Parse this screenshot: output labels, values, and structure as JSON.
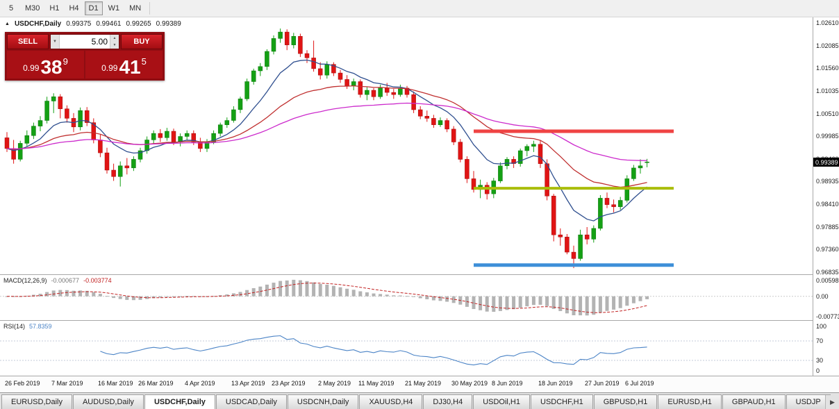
{
  "toolbar": {
    "timeframes": [
      {
        "label": "5",
        "active": false
      },
      {
        "label": "M30",
        "active": false
      },
      {
        "label": "H1",
        "active": false
      },
      {
        "label": "H4",
        "active": false
      },
      {
        "label": "D1",
        "active": true
      },
      {
        "label": "W1",
        "active": false
      },
      {
        "label": "MN",
        "active": false
      }
    ]
  },
  "chart_header": {
    "direction_icon": "▲",
    "symbol": "USDCHF,Daily",
    "open": "0.99375",
    "high": "0.99461",
    "low": "0.99265",
    "close": "0.99389"
  },
  "trade_panel": {
    "sell_label": "SELL",
    "buy_label": "BUY",
    "lot_value": "5.00",
    "lot_dropdown_icon": "▼",
    "lot_spin_up_icon": "▲",
    "lot_spin_down_icon": "▼",
    "bid_prefix": "0.99",
    "bid_big": "38",
    "bid_sup": "9",
    "ask_prefix": "0.99",
    "ask_big": "41",
    "ask_sup": "5"
  },
  "price_axis": {
    "labels": [
      "1.02610",
      "1.02085",
      "1.01560",
      "1.01035",
      "1.00510",
      "0.99985",
      "0.99460",
      "0.98935",
      "0.98410",
      "0.97885",
      "0.97360",
      "0.96835"
    ],
    "current_price_tag": "0.99389"
  },
  "macd_panel": {
    "title": "MACD(12,26,9)",
    "main_value": "-0.000677",
    "signal_value": "-0.003774",
    "axis_labels": [
      "0.005986",
      "0.00",
      "-0.00773"
    ]
  },
  "rsi_panel": {
    "title": "RSI(14)",
    "value": "57.8359",
    "axis_labels": [
      "100",
      "70",
      "30",
      "0"
    ]
  },
  "time_axis": [
    {
      "label": "26 Feb 2019",
      "index": 0
    },
    {
      "label": "7 Mar 2019",
      "index": 7
    },
    {
      "label": "16 Mar 2019",
      "index": 14
    },
    {
      "label": "26 Mar 2019",
      "index": 20
    },
    {
      "label": "4 Apr 2019",
      "index": 27
    },
    {
      "label": "13 Apr 2019",
      "index": 34
    },
    {
      "label": "23 Apr 2019",
      "index": 40
    },
    {
      "label": "2 May 2019",
      "index": 47
    },
    {
      "label": "11 May 2019",
      "index": 53
    },
    {
      "label": "21 May 2019",
      "index": 60
    },
    {
      "label": "30 May 2019",
      "index": 67
    },
    {
      "label": "8 Jun 2019",
      "index": 73
    },
    {
      "label": "18 Jun 2019",
      "index": 80
    },
    {
      "label": "27 Jun 2019",
      "index": 87
    },
    {
      "label": "6 Jul 2019",
      "index": 93
    }
  ],
  "tabs_bar": {
    "scroll_right_icon": "▶",
    "tabs": [
      {
        "label": "EURUSD,Daily",
        "active": false
      },
      {
        "label": "AUDUSD,Daily",
        "active": false
      },
      {
        "label": "USDCHF,Daily",
        "active": true
      },
      {
        "label": "USDCAD,Daily",
        "active": false
      },
      {
        "label": "USDCNH,Daily",
        "active": false
      },
      {
        "label": "XAUUSD,H4",
        "active": false
      },
      {
        "label": "DJ30,H4",
        "active": false
      },
      {
        "label": "USDOil,H1",
        "active": false
      },
      {
        "label": "USDCHF,H1",
        "active": false
      },
      {
        "label": "GBPUSD,H1",
        "active": false
      },
      {
        "label": "EURUSD,H1",
        "active": false
      },
      {
        "label": "GBPAUD,H1",
        "active": false
      },
      {
        "label": "USDJP",
        "active": false
      }
    ]
  },
  "chart_data": {
    "type": "candlestick",
    "symbol": "USDCHF",
    "timeframe": "Daily",
    "price_max": 1.0261,
    "price_min": 0.96835,
    "price_step": 0.00525,
    "last_close": 0.99389,
    "colors": {
      "bull": "#14a014",
      "bear": "#e01414",
      "bull_border": "#0a780a",
      "bear_border": "#a50d0d"
    },
    "ohlc": [
      [
        0.9995,
        1.0008,
        0.9962,
        0.997
      ],
      [
        0.997,
        0.999,
        0.9935,
        0.9945
      ],
      [
        0.9945,
        0.9988,
        0.994,
        0.9982
      ],
      [
        0.9982,
        1.0012,
        0.9975,
        1.0
      ],
      [
        1.0,
        1.003,
        0.9992,
        1.0022
      ],
      [
        1.0022,
        1.0045,
        1.001,
        1.0035
      ],
      [
        1.0035,
        1.009,
        1.0028,
        1.008
      ],
      [
        1.008,
        1.0098,
        1.0052,
        1.009
      ],
      [
        1.009,
        1.0096,
        1.004,
        1.0062
      ],
      [
        1.0062,
        1.007,
        1.003,
        1.004
      ],
      [
        1.004,
        1.0052,
        1.0008,
        1.002
      ],
      [
        1.002,
        1.0065,
        1.0012,
        1.0058
      ],
      [
        1.0058,
        1.0066,
        1.0022,
        1.003
      ],
      [
        1.003,
        1.004,
        0.9982,
        0.999
      ],
      [
        0.999,
        1.0002,
        0.995,
        0.996
      ],
      [
        0.996,
        0.9972,
        0.9912,
        0.992
      ],
      [
        0.992,
        0.9935,
        0.9895,
        0.9905
      ],
      [
        0.9905,
        0.994,
        0.9882,
        0.993
      ],
      [
        0.993,
        0.9948,
        0.991,
        0.9925
      ],
      [
        0.9925,
        0.9952,
        0.9918,
        0.9945
      ],
      [
        0.9945,
        0.9972,
        0.9938,
        0.9965
      ],
      [
        0.9965,
        0.9998,
        0.9958,
        0.999
      ],
      [
        0.999,
        1.0012,
        0.998,
        1.0005
      ],
      [
        1.0005,
        1.0015,
        0.9985,
        0.9995
      ],
      [
        0.9995,
        1.0018,
        0.9988,
        1.001
      ],
      [
        1.001,
        1.0016,
        0.9978,
        0.9985
      ],
      [
        0.9985,
        1.0005,
        0.9975,
        0.9998
      ],
      [
        0.9998,
        1.0012,
        0.999,
        1.0005
      ],
      [
        1.0005,
        1.0012,
        0.9978,
        0.9985
      ],
      [
        0.9985,
        0.9995,
        0.9962,
        0.997
      ],
      [
        0.997,
        0.9992,
        0.9962,
        0.9985
      ],
      [
        0.9985,
        1.0012,
        0.998,
        1.0005
      ],
      [
        1.0005,
        1.003,
        0.9998,
        1.0025
      ],
      [
        1.0025,
        1.0042,
        1.0018,
        1.0035
      ],
      [
        1.0035,
        1.0068,
        1.003,
        1.006
      ],
      [
        1.006,
        1.009,
        1.0052,
        1.0085
      ],
      [
        1.0085,
        1.0132,
        1.008,
        1.0125
      ],
      [
        1.0125,
        1.0155,
        1.0118,
        1.015
      ],
      [
        1.015,
        1.0168,
        1.0138,
        1.016
      ],
      [
        1.016,
        1.02,
        1.0152,
        1.0195
      ],
      [
        1.0195,
        1.0232,
        1.0188,
        1.0225
      ],
      [
        1.0225,
        1.0248,
        1.0215,
        1.024
      ],
      [
        1.024,
        1.0246,
        1.0198,
        1.021
      ],
      [
        1.021,
        1.0238,
        1.0202,
        1.023
      ],
      [
        1.023,
        1.0236,
        1.0182,
        1.019
      ],
      [
        1.019,
        1.0198,
        1.0168,
        1.018
      ],
      [
        1.018,
        1.022,
        1.0148,
        1.0155
      ],
      [
        1.0155,
        1.017,
        1.013,
        1.014
      ],
      [
        1.014,
        1.0172,
        1.0132,
        1.0165
      ],
      [
        1.0165,
        1.017,
        1.0138,
        1.0145
      ],
      [
        1.0145,
        1.0152,
        1.0122,
        1.013
      ],
      [
        1.013,
        1.014,
        1.0108,
        1.0115
      ],
      [
        1.0115,
        1.0132,
        1.0105,
        1.0125
      ],
      [
        1.0125,
        1.013,
        1.0088,
        1.0095
      ],
      [
        1.0095,
        1.0112,
        1.0082,
        1.0105
      ],
      [
        1.0105,
        1.011,
        1.0082,
        1.009
      ],
      [
        1.009,
        1.0118,
        1.0085,
        1.011
      ],
      [
        1.011,
        1.0122,
        1.0092,
        1.01
      ],
      [
        1.01,
        1.0108,
        1.0085,
        1.0095
      ],
      [
        1.0095,
        1.0118,
        1.009,
        1.011
      ],
      [
        1.011,
        1.0115,
        1.0088,
        1.0095
      ],
      [
        1.0095,
        1.0102,
        1.0052,
        1.006
      ],
      [
        1.006,
        1.0068,
        1.0038,
        1.0045
      ],
      [
        1.0045,
        1.0058,
        1.0032,
        1.004
      ],
      [
        1.004,
        1.0048,
        1.0018,
        1.0025
      ],
      [
        1.0025,
        1.0042,
        1.002,
        1.0035
      ],
      [
        1.0035,
        1.004,
        1.0008,
        1.0015
      ],
      [
        1.0015,
        1.0022,
        0.9978,
        0.9985
      ],
      [
        0.9985,
        0.9992,
        0.9938,
        0.9945
      ],
      [
        0.9945,
        0.9952,
        0.989,
        0.99
      ],
      [
        0.99,
        0.9918,
        0.9868,
        0.9875
      ],
      [
        0.9875,
        0.9898,
        0.9855,
        0.9885
      ],
      [
        0.9885,
        0.9892,
        0.9852,
        0.9865
      ],
      [
        0.9865,
        0.9902,
        0.9855,
        0.9895
      ],
      [
        0.9895,
        0.9938,
        0.989,
        0.993
      ],
      [
        0.993,
        0.995,
        0.9922,
        0.9945
      ],
      [
        0.9945,
        0.9952,
        0.9925,
        0.9935
      ],
      [
        0.9935,
        0.997,
        0.9928,
        0.9965
      ],
      [
        0.9965,
        0.998,
        0.9952,
        0.9975
      ],
      [
        0.9975,
        0.9988,
        0.9962,
        0.998
      ],
      [
        0.998,
        0.999,
        0.9925,
        0.9935
      ],
      [
        0.9935,
        0.9945,
        0.985,
        0.986
      ],
      [
        0.986,
        0.9865,
        0.9755,
        0.977
      ],
      [
        0.977,
        0.9785,
        0.9745,
        0.9765
      ],
      [
        0.9765,
        0.9772,
        0.9725,
        0.973
      ],
      [
        0.973,
        0.9745,
        0.9693,
        0.9715
      ],
      [
        0.9715,
        0.9782,
        0.971,
        0.977
      ],
      [
        0.977,
        0.9788,
        0.9748,
        0.976
      ],
      [
        0.976,
        0.9792,
        0.9752,
        0.9785
      ],
      [
        0.9785,
        0.9862,
        0.978,
        0.9855
      ],
      [
        0.9855,
        0.9868,
        0.9832,
        0.984
      ],
      [
        0.984,
        0.9852,
        0.9822,
        0.9835
      ],
      [
        0.9835,
        0.9858,
        0.9828,
        0.985
      ],
      [
        0.985,
        0.9908,
        0.9845,
        0.99
      ],
      [
        0.99,
        0.9932,
        0.9895,
        0.9925
      ],
      [
        0.9925,
        0.9945,
        0.9912,
        0.993
      ],
      [
        0.99375,
        0.99461,
        0.99265,
        0.99389
      ]
    ],
    "moving_averages": [
      {
        "name": "fast",
        "period": 10,
        "method": "ema",
        "color": "#2f4f8f"
      },
      {
        "name": "medium",
        "period": 28,
        "method": "ema",
        "color": "#c03030"
      },
      {
        "name": "slow",
        "period": 60,
        "method": "ema",
        "color": "#cc2acc"
      }
    ],
    "hlines": [
      {
        "name": "resistance-line",
        "price": 1.001,
        "color": "#ef4343",
        "width": 5,
        "from_index": 70,
        "to_index": 100
      },
      {
        "name": "mid-level-line",
        "price": 0.9878,
        "color": "#a9bd0a",
        "width": 4,
        "from_index": 70,
        "to_index": 100
      },
      {
        "name": "support-line",
        "price": 0.97,
        "color": "#3d8fd8",
        "width": 5,
        "from_index": 70,
        "to_index": 100
      }
    ],
    "macd": {
      "fast": 12,
      "slow": 26,
      "signal": 9,
      "axis_max": 0.005986,
      "axis_min": -0.00773,
      "histogram_color": "#b3b3b3",
      "signal_color": "#c22222"
    },
    "rsi": {
      "period": 14,
      "color": "#4a83c6",
      "levels": [
        70,
        30
      ],
      "level_color": "#c3cbd9"
    }
  }
}
